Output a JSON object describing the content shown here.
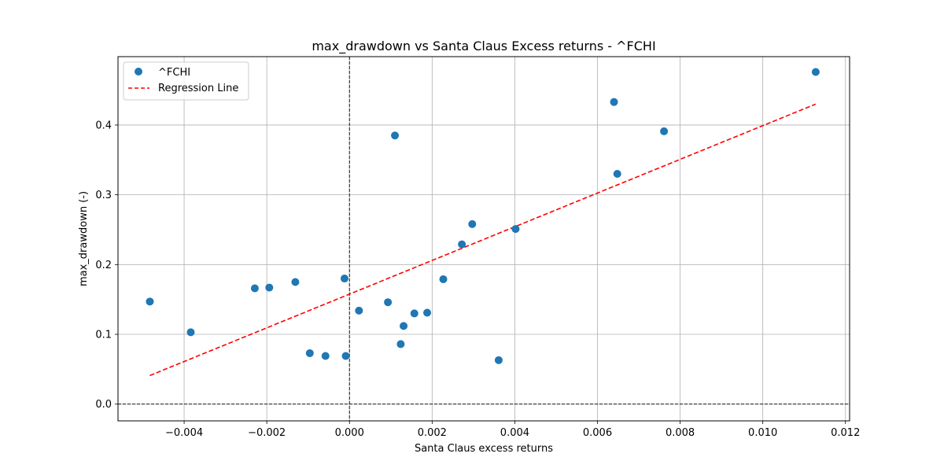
{
  "chart_data": {
    "type": "scatter",
    "title": "max_drawdown vs Santa Claus Excess returns - ^FCHI",
    "xlabel": "Santa Claus excess returns",
    "ylabel": "max_drawdown (-)",
    "xlim": [
      -0.0056,
      0.0121
    ],
    "ylim": [
      -0.024,
      0.498
    ],
    "xticks": [
      -0.004,
      -0.002,
      0.0,
      0.002,
      0.004,
      0.006,
      0.008,
      0.01,
      0.012
    ],
    "xtick_labels": [
      "−0.004",
      "−0.002",
      "0.000",
      "0.002",
      "0.004",
      "0.006",
      "0.008",
      "0.010",
      "0.012"
    ],
    "yticks": [
      0.0,
      0.1,
      0.2,
      0.3,
      0.4
    ],
    "ytick_labels": [
      "0.0",
      "0.1",
      "0.2",
      "0.3",
      "0.4"
    ],
    "grid": true,
    "legend_position": "top-left",
    "series": [
      {
        "name": "^FCHI",
        "kind": "scatter",
        "color": "#1f77b4",
        "points": [
          [
            -0.00483,
            0.147
          ],
          [
            -0.00384,
            0.103
          ],
          [
            -0.00229,
            0.166
          ],
          [
            -0.00194,
            0.167
          ],
          [
            -0.00131,
            0.175
          ],
          [
            -0.00096,
            0.073
          ],
          [
            -0.00058,
            0.069
          ],
          [
            -0.00012,
            0.18
          ],
          [
            -9e-05,
            0.069
          ],
          [
            0.00023,
            0.134
          ],
          [
            0.00093,
            0.146
          ],
          [
            0.0011,
            0.385
          ],
          [
            0.00124,
            0.086
          ],
          [
            0.00131,
            0.112
          ],
          [
            0.00157,
            0.13
          ],
          [
            0.00188,
            0.131
          ],
          [
            0.00227,
            0.179
          ],
          [
            0.00272,
            0.229
          ],
          [
            0.00297,
            0.258
          ],
          [
            0.00361,
            0.063
          ],
          [
            0.00402,
            0.251
          ],
          [
            0.0064,
            0.433
          ],
          [
            0.00648,
            0.33
          ],
          [
            0.00761,
            0.391
          ],
          [
            0.01128,
            0.476
          ]
        ]
      },
      {
        "name": "Regression Line",
        "kind": "line",
        "style": "dashed",
        "color": "#ff0000",
        "x": [
          -0.00483,
          0.01128
        ],
        "y": [
          0.041,
          0.43
        ]
      }
    ],
    "reference_lines": [
      {
        "orientation": "horizontal",
        "value": 0.0,
        "style": "dashed",
        "color": "#000000"
      },
      {
        "orientation": "vertical",
        "value": 0.0,
        "style": "dashed",
        "color": "#000000"
      }
    ]
  }
}
